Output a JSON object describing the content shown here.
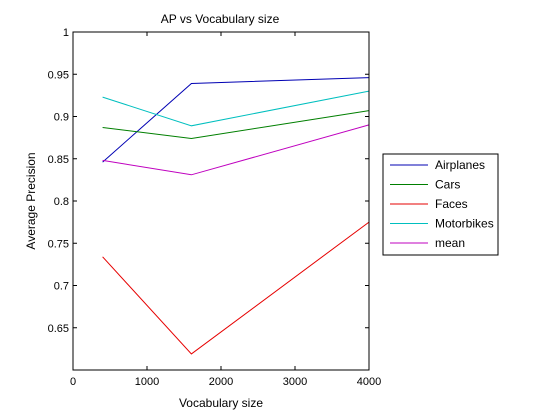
{
  "chart_data": {
    "type": "line",
    "title": "AP vs Vocabulary size",
    "xlabel": "Vocabulary size",
    "ylabel": "Average Precision",
    "xlim": [
      0,
      4000
    ],
    "ylim": [
      0.6,
      1.0
    ],
    "xticks": [
      0,
      1000,
      2000,
      3000,
      4000
    ],
    "yticks": [
      0.65,
      0.7,
      0.75,
      0.8,
      0.85,
      0.9,
      0.95,
      1
    ],
    "ytick_labels": [
      "0.65",
      "0.7",
      "0.75",
      "0.8",
      "0.85",
      "0.9",
      "0.95",
      "1"
    ],
    "x": [
      400,
      1600,
      4000
    ],
    "grid": false,
    "legend_position": "outside-right",
    "series": [
      {
        "name": "Airplanes",
        "color": "#0000b3",
        "values": [
          0.846,
          0.939,
          0.946
        ]
      },
      {
        "name": "Cars",
        "color": "#007f00",
        "values": [
          0.887,
          0.874,
          0.907
        ]
      },
      {
        "name": "Faces",
        "color": "#e60000",
        "values": [
          0.734,
          0.619,
          0.775
        ]
      },
      {
        "name": "Motorbikes",
        "color": "#00bfbf",
        "values": [
          0.923,
          0.889,
          0.93
        ]
      },
      {
        "name": "mean",
        "color": "#bf00bf",
        "values": [
          0.848,
          0.831,
          0.89
        ]
      }
    ]
  }
}
